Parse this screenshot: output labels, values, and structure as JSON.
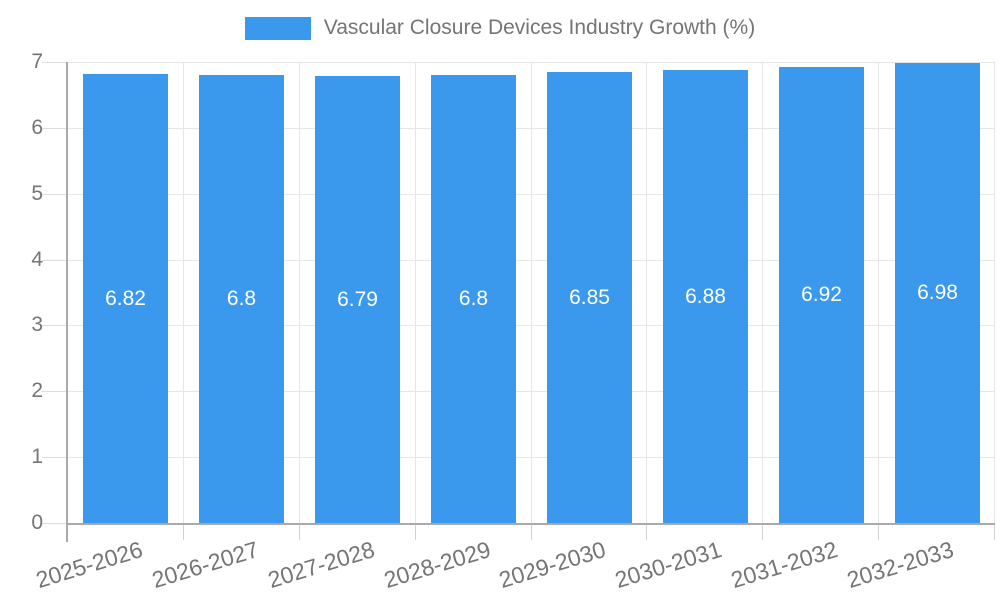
{
  "legend": {
    "label": "Vascular Closure Devices Industry Growth (%)"
  },
  "chart_data": {
    "type": "bar",
    "title": "Vascular Closure Devices Industry Growth (%)",
    "categories": [
      "2025-2026",
      "2026-2027",
      "2027-2028",
      "2028-2029",
      "2029-2030",
      "2030-2031",
      "2031-2032",
      "2032-2033"
    ],
    "values": [
      6.82,
      6.8,
      6.79,
      6.8,
      6.85,
      6.88,
      6.92,
      6.98
    ],
    "bar_labels": [
      "6.82",
      "6.8",
      "6.79",
      "6.8",
      "6.85",
      "6.88",
      "6.92",
      "6.98"
    ],
    "xlabel": "",
    "ylabel": "",
    "ylim": [
      0,
      7
    ],
    "yticks": [
      0,
      1,
      2,
      3,
      4,
      5,
      6,
      7
    ],
    "grid": true,
    "legend_position": "top",
    "colors": {
      "bar": "#3B99ED",
      "value_label": "#FFFFFF",
      "gridline": "#E6E6E6",
      "axis_line": "#A9A9A9",
      "axis_text": "#757575"
    }
  }
}
